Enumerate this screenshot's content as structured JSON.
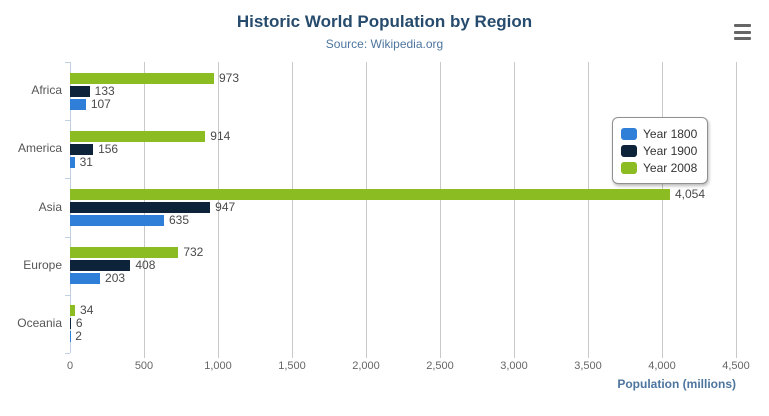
{
  "header": {
    "title": "Historic World Population by Region",
    "subtitle": "Source: Wikipedia.org"
  },
  "menu": {
    "icon": "hamburger-icon"
  },
  "chart_data": {
    "type": "bar",
    "orientation": "horizontal",
    "title": "Historic World Population by Region",
    "subtitle": "Source: Wikipedia.org",
    "categories": [
      "Africa",
      "America",
      "Asia",
      "Europe",
      "Oceania"
    ],
    "series": [
      {
        "name": "Year 1800",
        "color": "#2f7ed8",
        "values": [
          107,
          31,
          635,
          203,
          2
        ]
      },
      {
        "name": "Year 1900",
        "color": "#0d233a",
        "values": [
          133,
          156,
          947,
          408,
          6
        ]
      },
      {
        "name": "Year 2008",
        "color": "#8bbc21",
        "values": [
          973,
          914,
          4054,
          732,
          34
        ]
      }
    ],
    "bar_display_order_top_to_bottom": [
      "Year 2008",
      "Year 1900",
      "Year 1800"
    ],
    "data_labels_shown": true,
    "xlabel": "Population (millions)",
    "ylabel": "",
    "xlim": [
      0,
      4500
    ],
    "x_tick_step": 500,
    "x_tick_labels": [
      "0",
      "500",
      "1,000",
      "1,500",
      "2,000",
      "2,500",
      "3,000",
      "3,500",
      "4,000",
      "4,500"
    ],
    "grid": true,
    "legend_position": "right-inside",
    "legend_entries": [
      "Year 1800",
      "Year 1900",
      "Year 2008"
    ]
  },
  "colors": {
    "title": "#274b6d",
    "subtitle": "#4d759e",
    "axis_title": "#4d759e",
    "axis_line": "#c0d0e0",
    "gridline": "#c9c9c9",
    "tick_label": "#666666",
    "category_label": "#555555",
    "data_label": "#4a4a4a",
    "legend_text": "#333333",
    "legend_border": "#909090",
    "menu_icon": "#666666",
    "background": "#ffffff"
  }
}
